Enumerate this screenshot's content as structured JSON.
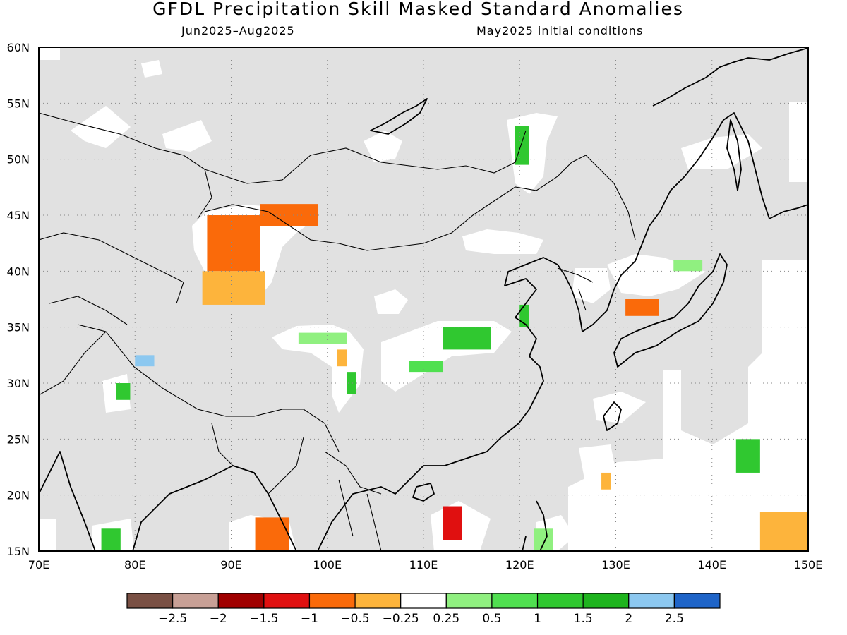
{
  "header": {
    "title": "GFDL Precipitation Skill Masked Standard Anomalies",
    "period": "Jun2025–Aug2025",
    "initial_conditions": "May2025 initial conditions"
  },
  "map": {
    "lon_range": [
      70,
      150
    ],
    "lat_range": [
      15,
      60
    ],
    "lon_ticks": [
      "70E",
      "80E",
      "90E",
      "100E",
      "110E",
      "120E",
      "130E",
      "140E",
      "150E"
    ],
    "lat_ticks": [
      "15N",
      "20N",
      "25N",
      "30N",
      "35N",
      "40N",
      "45N",
      "50N",
      "55N",
      "60N"
    ],
    "colors": {
      "land_mask": "#e1e1e1",
      "near_zero": "#ffffff",
      "frame": "#000000",
      "grid": "#888888"
    }
  },
  "anomalies": [
    {
      "lon": [
        87.5,
        93
      ],
      "lat": [
        40,
        45
      ],
      "value": -1.0
    },
    {
      "lon": [
        87,
        93.5
      ],
      "lat": [
        37,
        40
      ],
      "value": -0.5
    },
    {
      "lon": [
        93,
        99
      ],
      "lat": [
        44,
        46
      ],
      "value": -0.8
    },
    {
      "lon": [
        112,
        114
      ],
      "lat": [
        16,
        19
      ],
      "value": -1.3
    },
    {
      "lon": [
        92.5,
        96
      ],
      "lat": [
        15,
        18
      ],
      "value": -1.0
    },
    {
      "lon": [
        131,
        134.5
      ],
      "lat": [
        36,
        37.5
      ],
      "value": -0.8
    },
    {
      "lon": [
        128.5,
        129.5
      ],
      "lat": [
        20.5,
        22
      ],
      "value": -0.5
    },
    {
      "lon": [
        145,
        150
      ],
      "lat": [
        15,
        18.5
      ],
      "value": -0.5
    },
    {
      "lon": [
        101,
        102
      ],
      "lat": [
        31.5,
        33
      ],
      "value": -0.5
    },
    {
      "lon": [
        112,
        117
      ],
      "lat": [
        33,
        35
      ],
      "value": 1.0
    },
    {
      "lon": [
        108.5,
        112
      ],
      "lat": [
        31,
        32
      ],
      "value": 0.7
    },
    {
      "lon": [
        119.5,
        121
      ],
      "lat": [
        49.5,
        53
      ],
      "value": 1.0
    },
    {
      "lon": [
        142.5,
        145
      ],
      "lat": [
        22,
        25
      ],
      "value": 1.0
    },
    {
      "lon": [
        120,
        121
      ],
      "lat": [
        35,
        37
      ],
      "value": 1.0
    },
    {
      "lon": [
        76.5,
        78.5
      ],
      "lat": [
        15,
        17
      ],
      "value": 1.0
    },
    {
      "lon": [
        78,
        79.5
      ],
      "lat": [
        28.5,
        30
      ],
      "value": 1.2
    },
    {
      "lon": [
        102,
        103
      ],
      "lat": [
        29,
        31
      ],
      "value": 1.0
    },
    {
      "lon": [
        97,
        102
      ],
      "lat": [
        33.5,
        34.5
      ],
      "value": 0.4
    },
    {
      "lon": [
        136,
        139
      ],
      "lat": [
        40,
        41
      ],
      "value": 0.4
    },
    {
      "lon": [
        121.5,
        123.5
      ],
      "lat": [
        15,
        17
      ],
      "value": 0.4
    },
    {
      "lon": [
        80,
        82
      ],
      "lat": [
        31.5,
        32.5
      ],
      "value": 2.2
    }
  ],
  "colorbar": {
    "colors": [
      "#7a5044",
      "#c8a096",
      "#a00000",
      "#e01010",
      "#fa6a0a",
      "#fdb43c",
      "#ffffff",
      "#90f080",
      "#50e050",
      "#30c830",
      "#1eb41e",
      "#8cc8f0",
      "#1e64c8"
    ],
    "labels": [
      "−2.5",
      "−2",
      "−1.5",
      "−1",
      "−0.5",
      "−0.25",
      "0.25",
      "0.5",
      "1",
      "1.5",
      "2",
      "2.5"
    ]
  }
}
